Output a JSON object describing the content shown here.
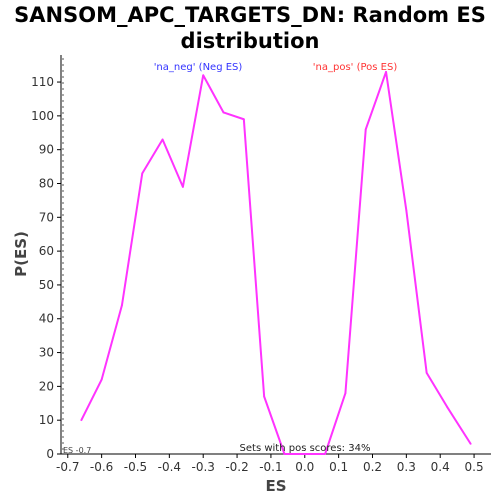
{
  "chart_data": {
    "type": "line",
    "title_line1": "SANSOM_APC_TARGETS_DN: Random ES",
    "title_line2": "distribution",
    "xlabel": "ES",
    "ylabel": "P(ES)",
    "xlim": [
      -0.72,
      0.55
    ],
    "ylim": [
      0,
      118
    ],
    "x_ticks": [
      -0.7,
      -0.6,
      -0.5,
      -0.4,
      -0.3,
      -0.2,
      -0.1,
      0.0,
      0.1,
      0.2,
      0.3,
      0.4,
      0.5
    ],
    "x_tick_labels": [
      "-0.7",
      "-0.6",
      "-0.5",
      "-0.4",
      "-0.3",
      "-0.2",
      "-0.1",
      "0.0",
      "0.1",
      "0.2",
      "0.3",
      "0.4",
      "0.5"
    ],
    "y_ticks": [
      0,
      10,
      20,
      30,
      40,
      50,
      60,
      70,
      80,
      90,
      100,
      110
    ],
    "y_tick_labels": [
      "0",
      "10",
      "20",
      "30",
      "40",
      "50",
      "60",
      "70",
      "80",
      "90",
      "100",
      "110"
    ],
    "series": [
      {
        "color": "#ff33ff",
        "x": [
          -0.66,
          -0.6,
          -0.54,
          -0.48,
          -0.42,
          -0.36,
          -0.3,
          -0.24,
          -0.18,
          -0.12,
          -0.06,
          0.0,
          0.06,
          0.12,
          0.18,
          0.24,
          0.3,
          0.36,
          0.42,
          0.49
        ],
        "y": [
          10,
          22,
          44,
          83,
          93,
          79,
          112,
          101,
          99,
          17,
          0,
          0,
          0,
          18,
          96,
          113,
          72,
          24,
          14,
          3
        ]
      }
    ],
    "annotations": {
      "neg_label": "'na_neg' (Neg ES)",
      "pos_label": "'na_pos' (Pos ES)",
      "neg_color": "#3333ff",
      "pos_color": "#ff3333",
      "footer": "Sets with pos scores: 34%",
      "corner": "ES -0.7"
    },
    "grid": false
  }
}
